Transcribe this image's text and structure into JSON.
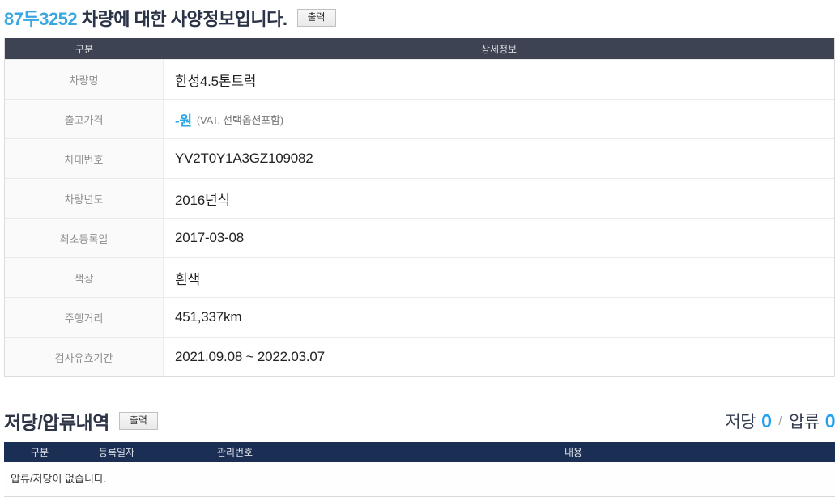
{
  "title": {
    "plate": "87두3252",
    "rest": " 차량에 대한 사양정보입니다.",
    "print_label": "출력"
  },
  "spec_table": {
    "headers": {
      "category": "구분",
      "detail": "상세정보"
    },
    "rows": [
      {
        "label": "차량명",
        "value": "한성4.5톤트럭"
      },
      {
        "label": "출고가격",
        "value_main": "-원",
        "value_note": "(VAT, 선택옵션포함)"
      },
      {
        "label": "차대번호",
        "value": "YV2T0Y1A3GZ109082"
      },
      {
        "label": "차량년도",
        "value": "2016년식"
      },
      {
        "label": "최초등록일",
        "value": "2017-03-08"
      },
      {
        "label": "색상",
        "value": "흰색"
      },
      {
        "label": "주행거리",
        "value": "451,337km"
      },
      {
        "label": "검사유효기간",
        "value": "2021.09.08 ~ 2022.03.07"
      }
    ]
  },
  "lien_section": {
    "title": "저당/압류내역",
    "print_label": "출력",
    "summary": {
      "mortgage_label": "저당",
      "mortgage_count": "0",
      "separator": "/",
      "seizure_label": "압류",
      "seizure_count": "0"
    },
    "table": {
      "headers": [
        "구분",
        "등록일자",
        "관리번호",
        "내용"
      ],
      "empty_message": "압류/저당이 없습니다."
    }
  },
  "colors": {
    "accent_blue": "#3aa7e0",
    "count_blue": "#1e9ff2",
    "spec_header_bg": "#3d4353",
    "lien_header_bg": "#1b2f54",
    "heading_text": "#2e3547"
  }
}
